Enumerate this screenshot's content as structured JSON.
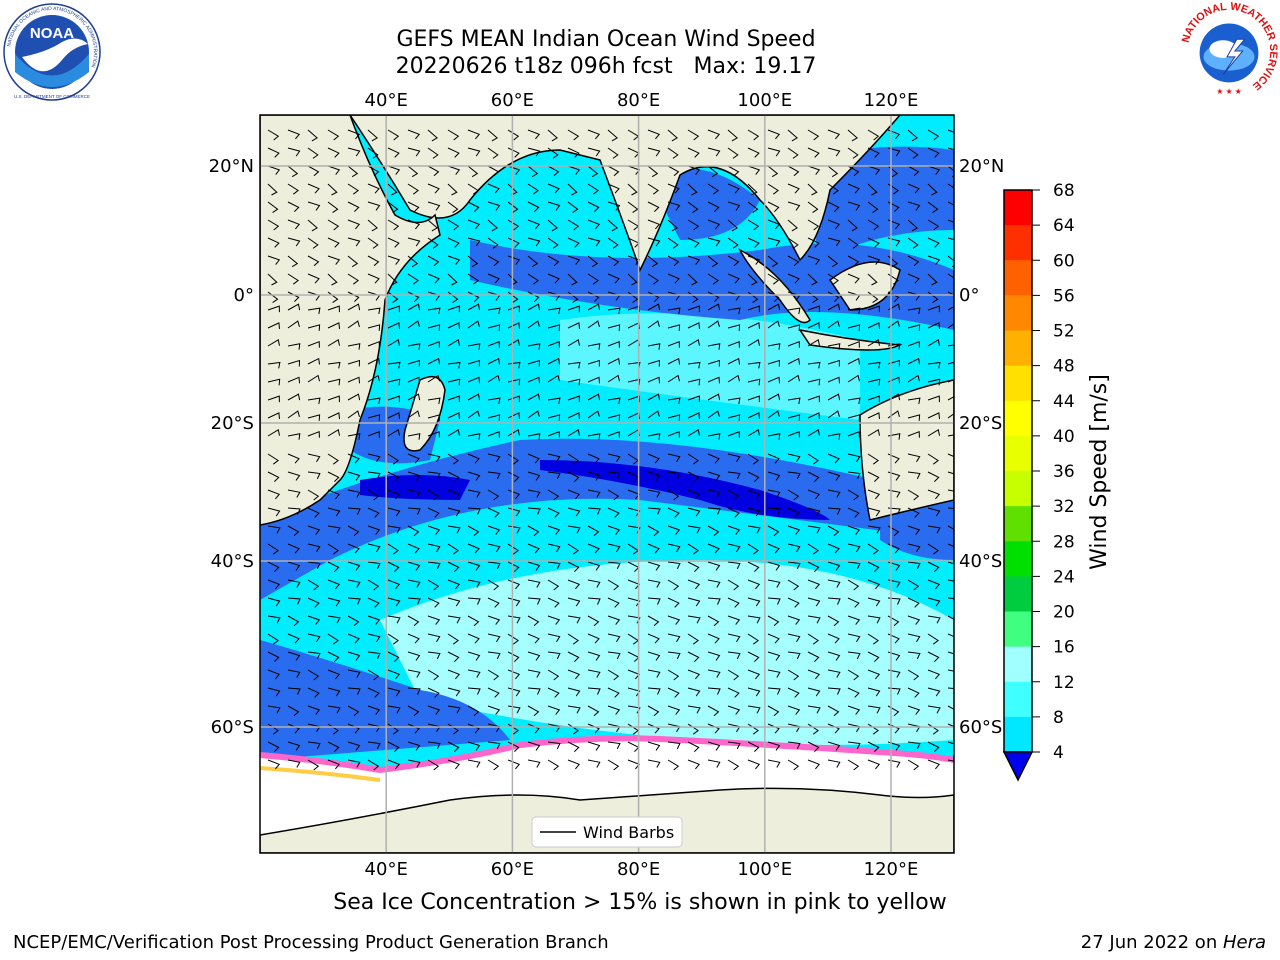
{
  "header": {
    "title_line1": "GEFS MEAN Indian Ocean Wind Speed",
    "title_line2": "20220626 t18z 096h fcst   Max: 19.17"
  },
  "logos": {
    "left": "NOAA",
    "left_ring_text": "NATIONAL OCEANIC AND ATMOSPHERIC ADMINISTRATION",
    "left_bottom_text": "U.S. DEPARTMENT OF COMMERCE",
    "right_ring_text": "NATIONAL WEATHER SERVICE"
  },
  "map": {
    "lon_labels": [
      "40°E",
      "60°E",
      "80°E",
      "100°E",
      "120°E"
    ],
    "lon_values": [
      40,
      60,
      80,
      100,
      120
    ],
    "lat_labels_left": [
      "20°N",
      "0°",
      "20°S",
      "40°S",
      "60°S"
    ],
    "lat_labels_right": [
      "20°N",
      "0°",
      "20°S",
      "40°S",
      "60°S"
    ],
    "lat_values": [
      20,
      0,
      -20,
      -40,
      -60
    ],
    "lon_range": [
      20,
      130
    ],
    "grid": true,
    "legend_label": "Wind Barbs",
    "legend_placement": "bottom-center"
  },
  "colorbar": {
    "label": "Wind Speed [m/s]",
    "ticks": [
      "68",
      "64",
      "60",
      "56",
      "52",
      "48",
      "44",
      "40",
      "36",
      "32",
      "28",
      "24",
      "20",
      "16",
      "12",
      "8",
      "4"
    ],
    "colors": [
      "#ff0000",
      "#ff3000",
      "#ff6000",
      "#ff8800",
      "#ffb000",
      "#ffe000",
      "#ffff00",
      "#e8ff00",
      "#c8ff00",
      "#60e000",
      "#00e000",
      "#00cc40",
      "#40ff80",
      "#a0ffff",
      "#40ffff",
      "#00e8ff",
      "#0088ff"
    ],
    "extend_color": "#0000ee"
  },
  "colors": {
    "land": "#eeeedd",
    "ice": "#ffffff",
    "ocean_low": "#2a6cf0",
    "ocean_mid": "#00ecff",
    "ocean_high": "#a6ffff",
    "ocean_min": "#0000e0"
  },
  "footer": {
    "caption": "Sea Ice Concentration > 15% is shown in pink to yellow",
    "left": "NCEP/EMC/Verification Post Processing Product Generation Branch",
    "right_date": "27 Jun 2022 on ",
    "right_host": "Hera"
  }
}
